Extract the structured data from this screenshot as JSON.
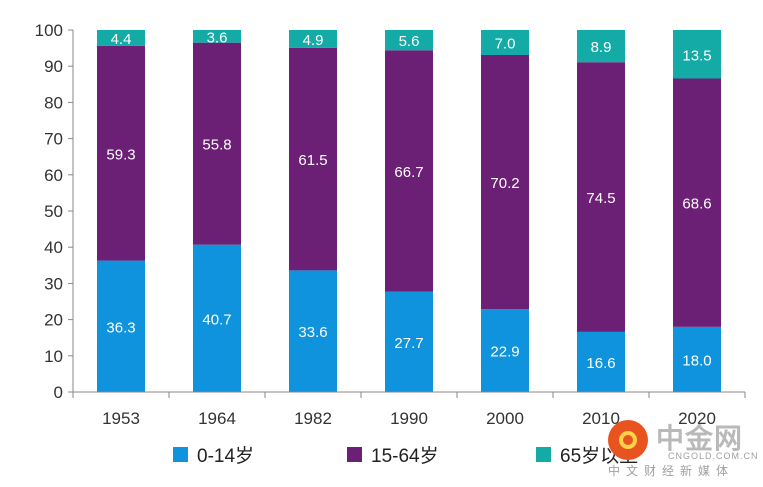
{
  "chart_data": {
    "type": "bar",
    "stacked": true,
    "categories": [
      "1953",
      "1964",
      "1982",
      "1990",
      "2000",
      "2010",
      "2020"
    ],
    "series": [
      {
        "name": "0-14岁",
        "color": "#0e93dc",
        "values": [
          36.3,
          40.7,
          33.6,
          27.7,
          22.9,
          16.6,
          18.0
        ]
      },
      {
        "name": "15-64岁",
        "color": "#6b1f75",
        "values": [
          59.3,
          55.8,
          61.5,
          66.7,
          70.2,
          74.5,
          68.6
        ]
      },
      {
        "name": "65岁以上",
        "color": "#14aaa6",
        "values": [
          4.4,
          3.6,
          4.9,
          5.6,
          7.0,
          8.9,
          13.5
        ]
      }
    ],
    "yticks": [
      "0",
      "10",
      "20",
      "30",
      "40",
      "50",
      "60",
      "70",
      "80",
      "90",
      "100"
    ],
    "ylim": [
      0,
      100
    ],
    "grid": false,
    "legend_position": "bottom",
    "title": "",
    "xlabel": "",
    "ylabel": ""
  },
  "watermark": {
    "brand": "中金网",
    "domain": "CNGOLD.COM.CN",
    "tagline": "中文财经新媒体"
  }
}
